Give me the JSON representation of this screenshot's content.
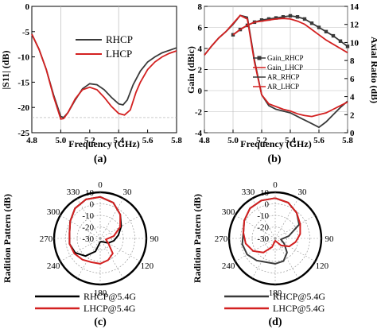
{
  "colors": {
    "black": "#000000",
    "dark": "#3a3a3a",
    "red": "#d32020",
    "axis": "#000000",
    "grid": "#b0b0b0"
  },
  "chart_data": [
    {
      "id": "a",
      "type": "line",
      "caption": "(a)",
      "xlabel": "Frequency (GHz)",
      "ylabel": "|S11| (dB)",
      "xlim": [
        4.8,
        5.8
      ],
      "ylim": [
        -25,
        0
      ],
      "xticks": [
        "4.8",
        "5.0",
        "5.2",
        "5.4",
        "5.6",
        "5.8"
      ],
      "yticks": [
        "0",
        "-5",
        "-10",
        "-15",
        "-20",
        "-25"
      ],
      "legend_position": "top-right",
      "series": [
        {
          "name": "RHCP",
          "color": "#3a3a3a",
          "x": [
            4.8,
            4.85,
            4.9,
            4.95,
            5.0,
            5.02,
            5.05,
            5.1,
            5.15,
            5.2,
            5.25,
            5.3,
            5.35,
            5.4,
            5.43,
            5.46,
            5.5,
            5.55,
            5.6,
            5.65,
            5.7,
            5.75,
            5.8
          ],
          "y": [
            -5.5,
            -8.5,
            -12.5,
            -17.5,
            -21.8,
            -22.0,
            -21.0,
            -18.5,
            -16.3,
            -15.3,
            -15.5,
            -16.5,
            -18.0,
            -19.3,
            -19.5,
            -18.5,
            -15.5,
            -12.8,
            -11.0,
            -10.0,
            -9.2,
            -8.7,
            -8.2
          ]
        },
        {
          "name": "LHCP",
          "color": "#d32020",
          "x": [
            4.8,
            4.85,
            4.9,
            4.95,
            5.0,
            5.02,
            5.05,
            5.1,
            5.15,
            5.2,
            5.25,
            5.3,
            5.35,
            5.4,
            5.44,
            5.48,
            5.52,
            5.55,
            5.6,
            5.65,
            5.7,
            5.75,
            5.8
          ],
          "y": [
            -5.5,
            -8.5,
            -12.5,
            -17.8,
            -22.3,
            -22.2,
            -21.0,
            -18.3,
            -16.5,
            -16.0,
            -16.5,
            -18.0,
            -19.8,
            -21.2,
            -21.5,
            -20.5,
            -17.0,
            -15.0,
            -12.5,
            -11.0,
            -10.0,
            -9.3,
            -8.8
          ]
        }
      ]
    },
    {
      "id": "b",
      "type": "line",
      "caption": "(b)",
      "xlabel": "Frequency (GHz)",
      "ylabel": "Gain (dBic)",
      "y2label": "Axial Ratio (dB)",
      "xlim": [
        4.8,
        5.8
      ],
      "ylim": [
        -4,
        8
      ],
      "y2lim": [
        0,
        14
      ],
      "xticks": [
        "4.8",
        "5.0",
        "5.2",
        "5.4",
        "5.6",
        "5.8"
      ],
      "yticks": [
        "8",
        "6",
        "4",
        "2",
        "0",
        "-2",
        "-4"
      ],
      "y2ticks": [
        "14",
        "12",
        "10",
        "8",
        "6",
        "4",
        "2",
        "0"
      ],
      "legend_position": "center-right",
      "series": [
        {
          "name": "Gain_RHCP",
          "color": "#3a3a3a",
          "axis": "left",
          "marker": "square",
          "x": [
            5.0,
            5.05,
            5.1,
            5.15,
            5.2,
            5.25,
            5.3,
            5.35,
            5.4,
            5.45,
            5.5,
            5.55,
            5.6,
            5.65,
            5.7,
            5.75,
            5.8
          ],
          "y": [
            5.3,
            5.8,
            6.2,
            6.5,
            6.7,
            6.8,
            6.9,
            7.0,
            7.1,
            7.0,
            6.8,
            6.4,
            6.0,
            5.6,
            5.2,
            4.7,
            4.2
          ]
        },
        {
          "name": "Gain_LHCP",
          "color": "#d32020",
          "axis": "left",
          "x": [
            5.0,
            5.05,
            5.1,
            5.15,
            5.2,
            5.25,
            5.3,
            5.35,
            5.4,
            5.45,
            5.5,
            5.55,
            5.6,
            5.65,
            5.7,
            5.75,
            5.8
          ],
          "y": [
            5.3,
            5.8,
            6.2,
            6.5,
            6.6,
            6.7,
            6.8,
            6.85,
            6.8,
            6.6,
            6.3,
            5.8,
            5.3,
            4.8,
            4.4,
            4.0,
            3.6
          ]
        },
        {
          "name": "AR_RHCP",
          "color": "#3a3a3a",
          "axis": "right",
          "x": [
            4.8,
            4.85,
            4.9,
            4.95,
            5.0,
            5.05,
            5.1,
            5.15,
            5.2,
            5.25,
            5.3,
            5.35,
            5.4,
            5.45,
            5.5,
            5.55,
            5.6,
            5.65,
            5.7,
            5.75,
            5.8
          ],
          "y": [
            8.6,
            9.6,
            10.5,
            11.2,
            12.0,
            13.0,
            12.8,
            8.0,
            4.2,
            3.0,
            2.6,
            2.4,
            2.2,
            1.8,
            1.4,
            1.0,
            0.6,
            1.2,
            2.0,
            2.8,
            3.5
          ]
        },
        {
          "name": "AR_LHCP",
          "color": "#d32020",
          "axis": "right",
          "x": [
            4.8,
            4.85,
            4.9,
            4.95,
            5.0,
            5.05,
            5.1,
            5.15,
            5.2,
            5.25,
            5.3,
            5.35,
            5.4,
            5.45,
            5.5,
            5.55,
            5.6,
            5.65,
            5.7,
            5.75,
            5.8
          ],
          "y": [
            8.6,
            9.6,
            10.5,
            11.2,
            12.1,
            13.0,
            12.6,
            7.8,
            4.2,
            3.2,
            2.9,
            2.6,
            2.4,
            2.1,
            1.9,
            1.8,
            2.0,
            2.2,
            2.6,
            3.0,
            3.4
          ]
        }
      ]
    },
    {
      "id": "c",
      "type": "polar",
      "caption": "(c)",
      "rlabel": "Radition Pattern (dB)",
      "rlim": [
        -30,
        10
      ],
      "rticks": [
        "10",
        "0",
        "-10",
        "-20",
        "-30"
      ],
      "angle_labels": [
        "0",
        "30",
        "90",
        "120",
        "180",
        "240",
        "270",
        "300",
        "330"
      ],
      "legend_position": "bottom",
      "series": [
        {
          "name": "RHCP@5.4G",
          "color": "#000000",
          "angle": [
            0,
            20,
            40,
            60,
            80,
            100,
            120,
            140,
            160,
            180,
            200,
            220,
            240,
            260,
            280,
            300,
            320,
            340
          ],
          "r": [
            6,
            3,
            -3,
            -9,
            -14,
            -18,
            -22,
            -26,
            -27,
            -27,
            -18,
            -10,
            -5,
            -3,
            -3,
            0,
            4,
            6
          ]
        },
        {
          "name": "LHCP@5.4G",
          "color": "#d32020",
          "angle": [
            0,
            20,
            40,
            60,
            80,
            100,
            120,
            140,
            160,
            180,
            200,
            220,
            240,
            260,
            280,
            300,
            320,
            340
          ],
          "r": [
            6,
            3,
            -3,
            -10,
            -18,
            -25,
            -22,
            -13,
            -10,
            -8,
            -8,
            -6,
            -4,
            -3,
            -3,
            0,
            4,
            6
          ]
        }
      ]
    },
    {
      "id": "d",
      "type": "polar",
      "caption": "(d)",
      "rlabel": "Radition Pattern (dB)",
      "rlim": [
        -30,
        10
      ],
      "rticks": [
        "10",
        "0",
        "-10",
        "-20",
        "-30"
      ],
      "angle_labels": [
        "0",
        "30",
        "90",
        "120",
        "180",
        "240",
        "270",
        "300",
        "330"
      ],
      "legend_position": "bottom",
      "series": [
        {
          "name": "RHCP@5.4G",
          "color": "#3a3a3a",
          "angle": [
            0,
            20,
            40,
            60,
            80,
            100,
            120,
            140,
            160,
            180,
            200,
            220,
            240,
            260,
            280,
            300,
            320,
            340
          ],
          "r": [
            5,
            3,
            -1,
            -6,
            -18,
            -25,
            -21,
            -14,
            -9,
            -8,
            -8,
            -5,
            -2,
            -1,
            -2,
            1,
            4,
            5
          ]
        },
        {
          "name": "LHCP@5.4G",
          "color": "#d32020",
          "angle": [
            0,
            20,
            40,
            60,
            80,
            100,
            120,
            140,
            160,
            180,
            200,
            220,
            240,
            260,
            280,
            300,
            320,
            340
          ],
          "r": [
            5,
            3,
            -1,
            -5,
            -8,
            -12,
            -16,
            -22,
            -27,
            -28,
            -22,
            -14,
            -8,
            -4,
            -2,
            1,
            4,
            5
          ]
        }
      ]
    }
  ]
}
